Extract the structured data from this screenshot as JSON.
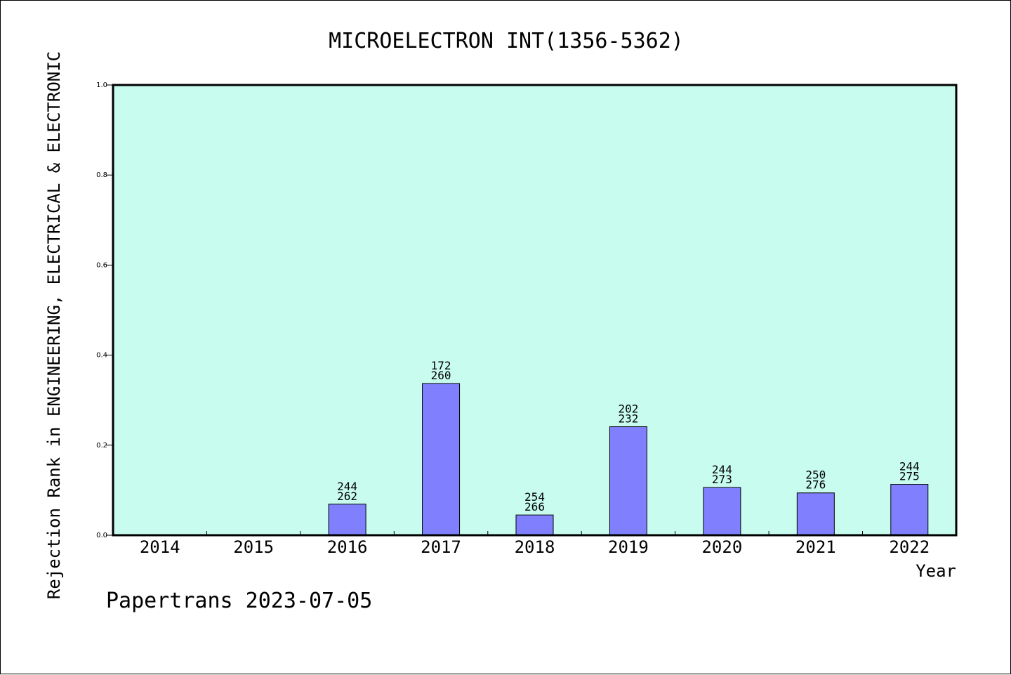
{
  "chart_data": {
    "type": "bar",
    "title": "MICROELECTRON INT(1356-5362)",
    "xlabel": "Year",
    "ylabel": "Rejection Rank in ENGINEERING, ELECTRICAL & ELECTRONIC",
    "ylim": [
      0,
      1.0
    ],
    "yticks": [
      "0.0",
      "0.2",
      "0.4",
      "0.6",
      "0.8",
      "1.0"
    ],
    "categories": [
      "2014",
      "2015",
      "2016",
      "2017",
      "2018",
      "2019",
      "2020",
      "2021",
      "2022"
    ],
    "values": [
      null,
      null,
      0.069,
      0.337,
      0.045,
      0.241,
      0.106,
      0.094,
      0.113
    ],
    "labels_top": [
      "",
      "",
      "244",
      "172",
      "254",
      "202",
      "244",
      "250",
      "244"
    ],
    "labels_bottom": [
      "",
      "",
      "262",
      "260",
      "266",
      "232",
      "273",
      "276",
      "275"
    ],
    "grid": false,
    "colors": {
      "plot_bg": "#c8fcee",
      "bar": "#8080ff"
    }
  },
  "footer": {
    "text": "Papertrans 2023-07-05"
  }
}
